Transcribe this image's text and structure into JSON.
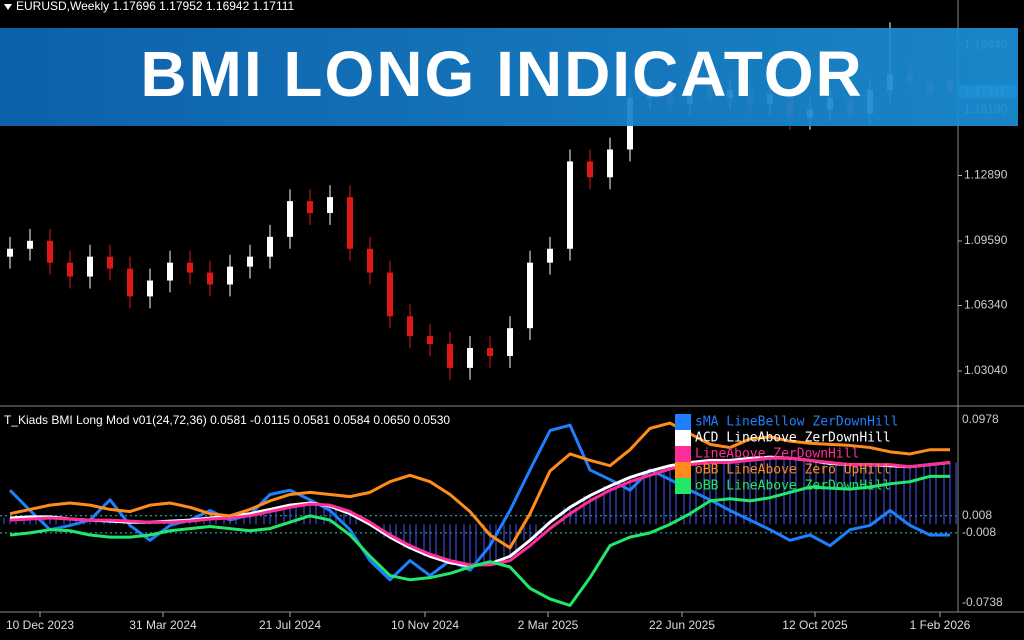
{
  "header": {
    "symbol_line": "EURUSD,Weekly 1.17696 1.17952 1.16942 1.17111"
  },
  "banner": {
    "title": "BMI LONG INDICATOR"
  },
  "price_chart": {
    "type": "candlestick",
    "up_color": "#ffffff",
    "down_color": "#e01818",
    "open": [
      1.088,
      1.092,
      1.096,
      1.085,
      1.078,
      1.088,
      1.082,
      1.068,
      1.076,
      1.085,
      1.08,
      1.074,
      1.083,
      1.088,
      1.098,
      1.116,
      1.11,
      1.118,
      1.092,
      1.08,
      1.058,
      1.048,
      1.044,
      1.032,
      1.042,
      1.038,
      1.052,
      1.085,
      1.092,
      1.136,
      1.128,
      1.142,
      1.168,
      1.172,
      1.165,
      1.175,
      1.168,
      1.172,
      1.165,
      1.17,
      1.158,
      1.162,
      1.168,
      1.16,
      1.172,
      1.18,
      1.176,
      1.177
    ],
    "high": [
      1.098,
      1.102,
      1.102,
      1.091,
      1.094,
      1.094,
      1.088,
      1.082,
      1.091,
      1.091,
      1.086,
      1.089,
      1.094,
      1.104,
      1.122,
      1.122,
      1.124,
      1.124,
      1.098,
      1.086,
      1.064,
      1.054,
      1.05,
      1.048,
      1.048,
      1.058,
      1.091,
      1.098,
      1.142,
      1.142,
      1.148,
      1.174,
      1.178,
      1.178,
      1.181,
      1.181,
      1.178,
      1.178,
      1.176,
      1.176,
      1.168,
      1.174,
      1.174,
      1.178,
      1.206,
      1.186,
      1.182,
      1.1795
    ],
    "low": [
      1.082,
      1.086,
      1.079,
      1.072,
      1.072,
      1.076,
      1.062,
      1.062,
      1.07,
      1.074,
      1.068,
      1.068,
      1.077,
      1.082,
      1.092,
      1.104,
      1.104,
      1.086,
      1.074,
      1.052,
      1.042,
      1.038,
      1.026,
      1.026,
      1.032,
      1.032,
      1.046,
      1.079,
      1.086,
      1.122,
      1.122,
      1.136,
      1.162,
      1.159,
      1.159,
      1.162,
      1.162,
      1.159,
      1.159,
      1.152,
      1.152,
      1.156,
      1.154,
      1.154,
      1.166,
      1.17,
      1.164,
      1.1694
    ],
    "close": [
      1.092,
      1.096,
      1.085,
      1.078,
      1.088,
      1.082,
      1.068,
      1.076,
      1.085,
      1.08,
      1.074,
      1.083,
      1.088,
      1.098,
      1.116,
      1.11,
      1.118,
      1.092,
      1.08,
      1.058,
      1.048,
      1.044,
      1.032,
      1.042,
      1.038,
      1.052,
      1.085,
      1.092,
      1.136,
      1.128,
      1.142,
      1.168,
      1.172,
      1.165,
      1.175,
      1.168,
      1.172,
      1.165,
      1.17,
      1.158,
      1.162,
      1.168,
      1.16,
      1.172,
      1.18,
      1.176,
      1.17,
      1.1711
    ],
    "ylim": [
      1.0133,
      1.2173
    ],
    "yticks": [
      {
        "value": 1.0304,
        "label": "1.03040"
      },
      {
        "value": 1.0634,
        "label": "1.06340"
      },
      {
        "value": 1.0959,
        "label": "1.09590"
      },
      {
        "value": 1.1289,
        "label": "1.12890"
      },
      {
        "value": 1.1619,
        "label": "1.16190"
      },
      {
        "value": 1.1944,
        "label": "1.19440"
      }
    ],
    "last_price": {
      "value": 1.17111,
      "label": "1.17111"
    }
  },
  "indicator": {
    "type": "line",
    "title": "T_Kiads BMI Long Mod v01(24,72,36) 0.0581 -0.0115 0.0581 0.0584 0.0650 0.0530",
    "ylim": [
      -0.0822,
      0.1091
    ],
    "yticks": [
      0.0978,
      0.008,
      -0.008,
      -0.0738
    ],
    "histogram_color": "#3a4ad8",
    "series": [
      {
        "name": "sMA LineBellow ZerDownHill",
        "color": "#1e7fff",
        "values": [
          0.032,
          0.013,
          -0.005,
          -0.001,
          0.004,
          0.023,
          -0.001,
          -0.015,
          -0.001,
          0.004,
          0.013,
          0.004,
          0.009,
          0.028,
          0.032,
          0.023,
          0.013,
          -0.005,
          -0.034,
          -0.052,
          -0.034,
          -0.048,
          -0.034,
          -0.043,
          -0.02,
          0.013,
          0.051,
          0.088,
          0.093,
          0.051,
          0.042,
          0.032,
          0.051,
          0.042,
          0.032,
          0.023,
          0.013,
          0.004,
          -0.005,
          -0.015,
          -0.01,
          -0.02,
          -0.005,
          -0.001,
          0.013,
          -0.001,
          -0.01,
          -0.01
        ]
      },
      {
        "name": "ACD LineAbove ZerDownHill",
        "color": "#ffffff",
        "values": [
          0.006,
          0.007,
          0.007,
          0.005,
          0.004,
          0.003,
          0.002,
          0.002,
          0.003,
          0.004,
          0.006,
          0.008,
          0.01,
          0.014,
          0.018,
          0.02,
          0.017,
          0.01,
          0.0,
          -0.012,
          -0.022,
          -0.03,
          -0.036,
          -0.039,
          -0.037,
          -0.03,
          -0.015,
          0.002,
          0.016,
          0.027,
          0.036,
          0.044,
          0.05,
          0.055,
          0.058,
          0.06,
          0.06,
          0.062,
          0.063,
          0.062,
          0.06,
          0.057,
          0.056,
          0.056,
          0.055,
          0.054,
          0.056,
          0.058
        ]
      },
      {
        "name": "LineAbove ZerDownHill",
        "color": "#ff2d9a",
        "values": [
          0.004,
          0.005,
          0.006,
          0.005,
          0.004,
          0.004,
          0.003,
          0.002,
          0.002,
          0.003,
          0.005,
          0.006,
          0.008,
          0.012,
          0.016,
          0.019,
          0.018,
          0.012,
          0.002,
          -0.01,
          -0.02,
          -0.028,
          -0.034,
          -0.038,
          -0.038,
          -0.034,
          -0.02,
          -0.004,
          0.01,
          0.022,
          0.032,
          0.04,
          0.046,
          0.052,
          0.056,
          0.058,
          0.058,
          0.06,
          0.062,
          0.062,
          0.06,
          0.058,
          0.056,
          0.056,
          0.056,
          0.054,
          0.056,
          0.058
        ]
      },
      {
        "name": "oBB LineAbove Zero UpHill",
        "color": "#ff8c1a",
        "values": [
          0.01,
          0.014,
          0.018,
          0.02,
          0.018,
          0.014,
          0.012,
          0.018,
          0.02,
          0.016,
          0.01,
          0.008,
          0.014,
          0.022,
          0.028,
          0.03,
          0.028,
          0.026,
          0.03,
          0.04,
          0.046,
          0.04,
          0.028,
          0.012,
          -0.01,
          -0.022,
          0.01,
          0.05,
          0.066,
          0.06,
          0.055,
          0.07,
          0.09,
          0.095,
          0.085,
          0.075,
          0.072,
          0.08,
          0.082,
          0.078,
          0.076,
          0.075,
          0.074,
          0.072,
          0.068,
          0.066,
          0.07,
          0.07
        ]
      },
      {
        "name": "oBB LineAbove ZerDownHill",
        "color": "#22e86a",
        "values": [
          -0.01,
          -0.008,
          -0.005,
          -0.006,
          -0.01,
          -0.012,
          -0.012,
          -0.01,
          -0.006,
          -0.004,
          -0.002,
          -0.004,
          -0.006,
          -0.004,
          0.002,
          0.008,
          0.004,
          -0.01,
          -0.03,
          -0.048,
          -0.052,
          -0.05,
          -0.046,
          -0.04,
          -0.035,
          -0.04,
          -0.06,
          -0.07,
          -0.076,
          -0.05,
          -0.02,
          -0.012,
          -0.008,
          0.0,
          0.01,
          0.022,
          0.024,
          0.022,
          0.025,
          0.03,
          0.035,
          0.034,
          0.033,
          0.035,
          0.038,
          0.04,
          0.045,
          0.045
        ]
      }
    ]
  },
  "x_labels": [
    "10 Dec 2023",
    "31 Mar 2024",
    "21 Jul 2024",
    "10 Nov 2024",
    "2 Mar 2025",
    "22 Jun 2025",
    "12 Oct 2025",
    "1 Feb 2026"
  ]
}
